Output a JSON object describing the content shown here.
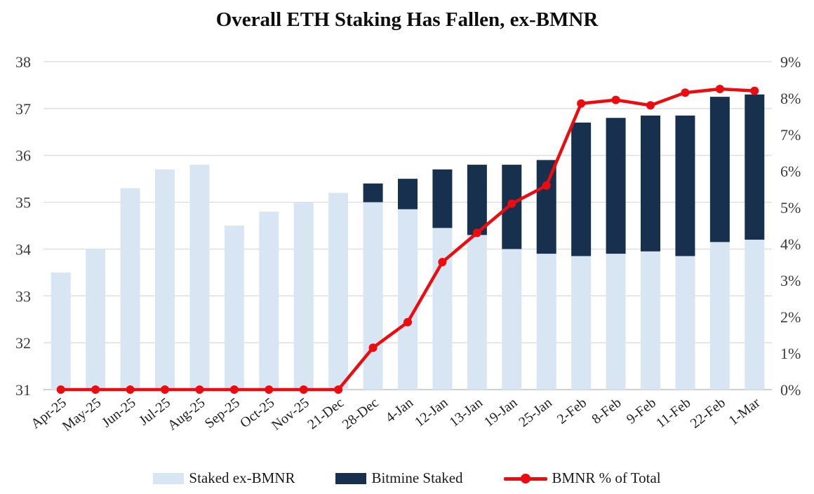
{
  "title": "Overall ETH Staking Has Fallen, ex-BMNR",
  "colors": {
    "staked_ex_bmnr": "#d8e6f4",
    "bitmine_staked": "#16304d",
    "bmnr_line": "#ec0b0e",
    "gridline": "#d9d9d9",
    "axis_line": "#c0c0c0",
    "tick_text": "#3a3a3a",
    "xlabel_text": "#1f1f1f",
    "background": "#ffffff"
  },
  "chart_data": {
    "type": "bar",
    "subtype": "stacked-bar-with-line-combo",
    "title": "Overall ETH Staking Has Fallen, ex-BMNR",
    "categories": [
      "Apr-25",
      "May-25",
      "Jun-25",
      "Jul-25",
      "Aug-25",
      "Sep-25",
      "Oct-25",
      "Nov-25",
      "21-Dec",
      "28-Dec",
      "4-Jan",
      "12-Jan",
      "13-Jan",
      "19-Jan",
      "25-Jan",
      "2-Feb",
      "8-Feb",
      "9-Feb",
      "11-Feb",
      "22-Feb",
      "1-Mar"
    ],
    "series": [
      {
        "name": "Staked ex-BMNR",
        "type": "bar",
        "axis": "left",
        "stack": true,
        "color": "#d8e6f4",
        "values": [
          33.5,
          34.0,
          35.3,
          35.7,
          35.8,
          34.5,
          34.8,
          35.0,
          35.2,
          35.0,
          34.85,
          34.45,
          34.3,
          34.0,
          33.9,
          33.85,
          33.9,
          33.95,
          33.85,
          34.15,
          34.2
        ]
      },
      {
        "name": "Bitmine Staked",
        "type": "bar",
        "axis": "left",
        "stack": true,
        "color": "#16304d",
        "values": [
          0,
          0,
          0,
          0,
          0,
          0,
          0,
          0,
          0,
          0.4,
          0.65,
          1.25,
          1.5,
          1.8,
          2.0,
          2.85,
          2.9,
          2.9,
          3.0,
          3.1,
          3.1
        ]
      },
      {
        "name": "BMNR % of Total",
        "type": "line",
        "axis": "right",
        "color": "#ec0b0e",
        "marker": "circle",
        "values": [
          0,
          0,
          0,
          0,
          0,
          0,
          0,
          0,
          0,
          1.15,
          1.85,
          3.5,
          4.3,
          5.1,
          5.6,
          7.85,
          7.95,
          7.8,
          8.15,
          8.25,
          8.2
        ]
      }
    ],
    "left_axis": {
      "min": 31,
      "max": 38,
      "ticks": [
        "38",
        "37",
        "36",
        "35",
        "34",
        "33",
        "32",
        "31"
      ]
    },
    "right_axis": {
      "min": 0,
      "max": 9,
      "ticks": [
        "9%",
        "8%",
        "7%",
        "6%",
        "5%",
        "4%",
        "3%",
        "2%",
        "1%",
        "0%"
      ]
    },
    "grid": true,
    "legend_position": "bottom",
    "xlabel": "",
    "ylabel": ""
  },
  "legend": {
    "items": [
      {
        "label": "Staked ex-BMNR",
        "swatch": "light-blue-rect"
      },
      {
        "label": "Bitmine Staked",
        "swatch": "navy-rect"
      },
      {
        "label": "BMNR % of Total",
        "swatch": "red-line-marker"
      }
    ]
  }
}
